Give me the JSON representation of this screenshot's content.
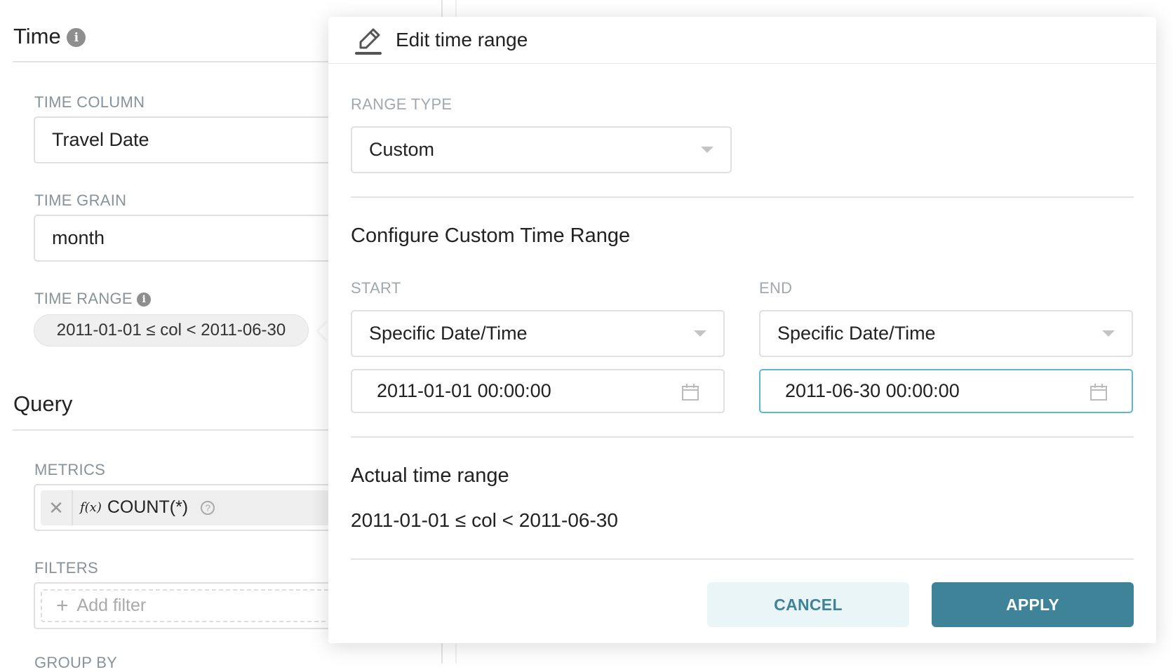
{
  "left_panel": {
    "time_section": {
      "title": "Time",
      "time_column_label": "TIME COLUMN",
      "time_column_value": "Travel Date",
      "time_grain_label": "TIME GRAIN",
      "time_grain_value": "month",
      "time_range_label": "TIME RANGE",
      "time_range_value": "2011-01-01 ≤ col < 2011-06-30"
    },
    "query_section": {
      "title": "Query",
      "metrics_label": "METRICS",
      "metric_fx": "f(x)",
      "metric_value": "COUNT(*)",
      "filters_label": "FILTERS",
      "add_filter": "Add filter",
      "group_by_label": "GROUP BY"
    }
  },
  "dialog": {
    "title": "Edit time range",
    "range_type_label": "RANGE TYPE",
    "range_type_value": "Custom",
    "custom_heading": "Configure Custom Time Range",
    "start_label": "START",
    "end_label": "END",
    "start_mode": "Specific Date/Time",
    "end_mode": "Specific Date/Time",
    "start_value": "2011-01-01 00:00:00",
    "end_value": "2011-06-30 00:00:00",
    "actual_heading": "Actual time range",
    "actual_value": "2011-01-01 ≤ col < 2011-06-30",
    "cancel": "CANCEL",
    "apply": "APPLY"
  },
  "colors": {
    "primary": "#3f8399",
    "cancel_bg": "#eaf5f8",
    "focus_border": "#5ab8d4",
    "label": "#879399"
  }
}
